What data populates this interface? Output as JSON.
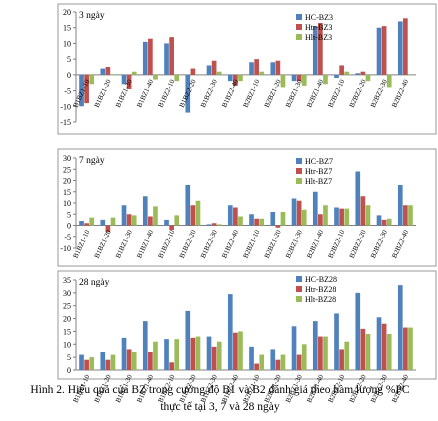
{
  "caption": {
    "line1": "Hình 2. Hiệu quả của BZ trong cường độ B1 và B2 đánh giá theo hàm lượng %PC",
    "line2": "thực tế tại 3, 7 và 28 ngày"
  },
  "colors": {
    "HC": "#4F81BD",
    "Htr": "#C0504D",
    "Hlt": "#9BBB59"
  },
  "chart_data": [
    {
      "type": "bar",
      "title": "3 ngày",
      "categories": [
        "B1BZ1-10",
        "B1BZ1-20",
        "B1BZ1-30",
        "B1BZ1-40",
        "B1BZ2-10",
        "B1BZ2-20",
        "B1BZ2-30",
        "B1BZ2-40",
        "B2BZ1-10",
        "B2BZ1-20",
        "B2BZ1-30",
        "B2BZ1-40",
        "B2BZ2-10",
        "B2BZ2-20",
        "B2BZ2-30",
        "B2BZ2-40"
      ],
      "series": [
        {
          "name": "HC-BZ3",
          "values": [
            -10,
            2,
            -3,
            10.5,
            10,
            -12,
            3,
            -2,
            4,
            4,
            -2,
            15.5,
            -1,
            0.5,
            15,
            17
          ]
        },
        {
          "name": "Htr-BZ3",
          "values": [
            -9,
            2.5,
            -4.5,
            11.5,
            12,
            2,
            4.5,
            -3.5,
            5,
            4.5,
            -2,
            16.5,
            3,
            1,
            15.5,
            18
          ]
        },
        {
          "name": "Hlt-BZ3",
          "values": [
            -3,
            0,
            1,
            -1.5,
            -2,
            0,
            1,
            -2,
            1,
            -4,
            -3.5,
            -3,
            1,
            -2,
            -4,
            0
          ]
        }
      ],
      "ylim": [
        -15,
        20
      ],
      "yticks": [
        -15,
        -10,
        -5,
        0,
        5,
        10,
        15,
        20
      ],
      "legend": "top-right",
      "grid": false
    },
    {
      "type": "bar",
      "title": "7 ngày",
      "categories": [
        "B1BZ1-10",
        "B1BZ1-20",
        "B1BZ1-30",
        "B1BZ1-40",
        "B1BZ2-10",
        "B1BZ2-20",
        "B1BZ2-30",
        "B1BZ2-40",
        "B2BZ1-10",
        "B2BZ1-20",
        "B2BZ1-30",
        "B2BZ1-40",
        "B2BZ2-10",
        "B2BZ2-20",
        "B2BZ2-30",
        "B2BZ2-40"
      ],
      "series": [
        {
          "name": "HC-BZ7",
          "values": [
            2,
            2.5,
            9,
            13,
            2.5,
            18,
            0.5,
            9,
            5,
            6,
            12,
            15,
            8,
            24,
            4.5,
            18
          ]
        },
        {
          "name": "Htr-BZ7",
          "values": [
            1,
            -3,
            5,
            4,
            -2,
            9,
            1,
            8,
            3,
            -1,
            11,
            5,
            7.5,
            13,
            2.5,
            9
          ]
        },
        {
          "name": "Hlt-BZ7",
          "values": [
            3.5,
            3.5,
            4.5,
            8.5,
            4.5,
            11,
            0.5,
            4,
            3,
            6,
            7,
            9,
            7.5,
            9,
            3,
            9
          ]
        }
      ],
      "ylim": [
        -10,
        30
      ],
      "yticks": [
        -10,
        -5,
        0,
        5,
        10,
        15,
        20,
        25,
        30
      ],
      "legend": "top-right",
      "grid": false
    },
    {
      "type": "bar",
      "title": "28 ngày",
      "categories": [
        "B1BZ1-10",
        "B1BZ1-20",
        "B1BZ1-30",
        "B1BZ1-40",
        "B1BZ2-10",
        "B1BZ2-20",
        "B1BZ2-30",
        "B1BZ2-40",
        "B2BZ1-10",
        "B2BZ1-20",
        "B2BZ1-30",
        "B2BZ1-40",
        "B2BZ2-10",
        "B2BZ2-20",
        "B2BZ2-30",
        "B2BZ2-40"
      ],
      "series": [
        {
          "name": "HC-BZ28",
          "values": [
            6,
            7,
            12.5,
            19,
            12,
            23,
            13,
            29.5,
            9,
            8,
            17,
            19,
            22,
            30,
            20.5,
            33
          ]
        },
        {
          "name": "Htr-BZ28",
          "values": [
            4,
            4,
            8,
            7,
            3,
            12.5,
            9,
            14.5,
            2.5,
            4,
            6,
            13,
            8,
            16,
            18,
            16.5
          ]
        },
        {
          "name": "Hlt-BZ28",
          "values": [
            5,
            6,
            7,
            11,
            12,
            13,
            11,
            15,
            6,
            6,
            10,
            13,
            11,
            14,
            14,
            16.5
          ]
        }
      ],
      "ylim": [
        0,
        35
      ],
      "yticks": [
        0,
        5,
        10,
        15,
        20,
        25,
        30,
        35
      ],
      "legend": "top-right",
      "grid": false
    }
  ]
}
